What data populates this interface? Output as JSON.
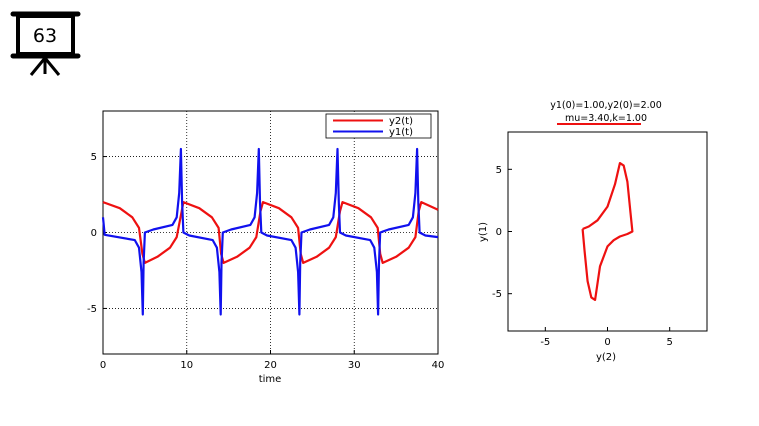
{
  "slide_badge": {
    "number": "63",
    "icon": "presentation-board-icon"
  },
  "chart_data": [
    {
      "type": "line",
      "title": "",
      "xlabel": "time",
      "ylabel": "",
      "xlim": [
        0,
        40
      ],
      "ylim": [
        -8,
        8
      ],
      "xticks": [
        "0",
        "10",
        "20",
        "30",
        "40"
      ],
      "yticks": [
        "-5",
        "0",
        "5"
      ],
      "grid": true,
      "legend_position": "top-right",
      "series": [
        {
          "name": "y2(t)",
          "color": "#ee1111",
          "x": [
            0,
            2,
            3.5,
            4.3,
            4.7,
            5.0,
            6.5,
            8.0,
            8.8,
            9.4,
            9.6,
            11.5,
            13.0,
            13.8,
            14.1,
            14.4,
            16.0,
            17.5,
            18.3,
            18.8,
            19.1,
            21.0,
            22.5,
            23.3,
            23.6,
            23.9,
            25.5,
            27.0,
            27.8,
            28.3,
            28.6,
            30.5,
            32.0,
            32.8,
            33.1,
            33.4,
            35.0,
            36.5,
            37.3,
            37.7,
            38.0,
            40.0
          ],
          "y": [
            2.0,
            1.6,
            1.0,
            0.3,
            -1.4,
            -2.0,
            -1.6,
            -1.0,
            -0.3,
            1.4,
            2.0,
            1.6,
            1.0,
            0.3,
            -1.4,
            -2.0,
            -1.6,
            -1.0,
            -0.3,
            1.4,
            2.0,
            1.6,
            1.0,
            0.3,
            -1.4,
            -2.0,
            -1.6,
            -1.0,
            -0.3,
            1.4,
            2.0,
            1.6,
            1.0,
            0.3,
            -1.4,
            -2.0,
            -1.6,
            -1.0,
            -0.3,
            1.4,
            2.0,
            1.5
          ]
        },
        {
          "name": "y1(t)",
          "color": "#1111ee",
          "x": [
            0,
            0.2,
            3.8,
            4.3,
            4.6,
            4.75,
            4.85,
            5.0,
            6.0,
            8.3,
            8.8,
            9.1,
            9.3,
            9.45,
            9.6,
            10.3,
            13.1,
            13.6,
            13.9,
            14.05,
            14.15,
            14.3,
            15.3,
            17.6,
            18.1,
            18.4,
            18.6,
            18.75,
            18.9,
            19.6,
            22.5,
            23.0,
            23.3,
            23.45,
            23.55,
            23.7,
            24.7,
            27.0,
            27.5,
            27.8,
            28.0,
            28.15,
            28.3,
            29.0,
            31.9,
            32.4,
            32.7,
            32.85,
            32.95,
            33.1,
            34.1,
            36.5,
            37.0,
            37.3,
            37.5,
            37.65,
            37.8,
            38.5,
            40.0
          ],
          "y": [
            1.0,
            -0.15,
            -0.5,
            -1.0,
            -2.6,
            -5.4,
            -2.0,
            0.0,
            0.2,
            0.5,
            1.0,
            2.6,
            5.5,
            2.0,
            0.0,
            -0.2,
            -0.5,
            -1.0,
            -2.6,
            -5.4,
            -2.0,
            0.0,
            0.2,
            0.5,
            1.0,
            2.6,
            5.5,
            2.0,
            0.0,
            -0.2,
            -0.5,
            -1.0,
            -2.6,
            -5.4,
            -2.0,
            0.0,
            0.2,
            0.5,
            1.0,
            2.6,
            5.5,
            2.0,
            0.0,
            -0.2,
            -0.5,
            -1.0,
            -2.6,
            -5.4,
            -2.0,
            0.0,
            0.2,
            0.5,
            1.0,
            2.6,
            5.5,
            2.0,
            0.0,
            -0.2,
            -0.3
          ]
        }
      ]
    },
    {
      "type": "line",
      "title": "y1(0)=1.00,y2(0)=2.00",
      "subtitle": "mu=3.40,k=1.00",
      "xlabel": "y(2)",
      "ylabel": "y(1)",
      "xlim": [
        -8,
        8
      ],
      "ylim": [
        -8,
        8
      ],
      "xticks": [
        "-5",
        "0",
        "5"
      ],
      "yticks": [
        "-5",
        "0",
        "5"
      ],
      "grid": false,
      "series": [
        {
          "name": "",
          "color": "#ee1111",
          "x": [
            -2.0,
            -1.5,
            -0.8,
            0.0,
            0.6,
            1.0,
            1.3,
            1.6,
            1.85,
            2.0,
            1.6,
            1.0,
            0.5,
            0.0,
            -0.6,
            -1.0,
            -1.3,
            -1.6,
            -1.85,
            -2.0
          ],
          "y": [
            0.2,
            0.4,
            0.9,
            2.0,
            3.8,
            5.5,
            5.3,
            4.0,
            1.5,
            0.0,
            -0.2,
            -0.4,
            -0.7,
            -1.2,
            -2.8,
            -5.5,
            -5.3,
            -4.0,
            -1.5,
            0.2
          ]
        }
      ]
    }
  ]
}
